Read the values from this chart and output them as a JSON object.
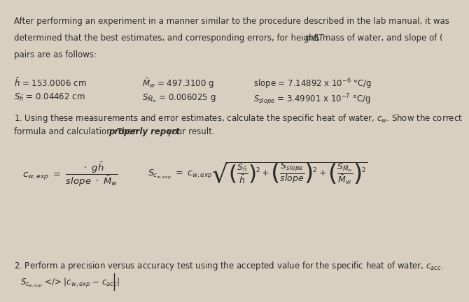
{
  "bg_color": "#d9cfc0",
  "text_color": "#2a2a2a",
  "fs": 8.5,
  "line1": "After performing an experiment in a manner similar to the procedure described in the lab manual, it was",
  "line2a": "determined that the best estimates, and corresponding errors, for height, mass of water, and slope of (",
  "line2b": "mAT",
  "line2c": ")",
  "line3": "pairs are as follows:",
  "h_label": "$\\bar{h}$ = 153.0006 cm",
  "Sh_label": "$S_{\\bar{h}}$ = 0.04462 cm",
  "Mw_label": "$\\bar{M}_w$ = 497.3100 g",
  "SMw_label": "$S_{\\bar{M}_w}$ = 0.006025 g",
  "slope_label": "slope = 7.14892 x 10$^{-6}$ °C/g",
  "Sslope_label": "$S_{slope}$ = 3.49901 x 10$^{-7}$ °C/g",
  "q1_line1": "1. Using these measurements and error estimates, calculate the specific heat of water, $c_w$. Show the correct",
  "q1_line2a": "formula and calculation. Then ",
  "q1_line2b": "properly report",
  "q1_line2c": " your result.",
  "lhs_formula": "$c_{w,exp}\\ =\\ \\dfrac{\\cdot\\ g\\bar{h}}{slope\\ \\cdot\\ \\bar{M}_w}$",
  "rhs_formula": "$S_{c_{w,exp}}\\ =\\ c_{w,exp}\\sqrt{\\left(\\dfrac{S_{\\bar{h}}}{\\bar{h}}\\right)^{\\!2}\\!+\\!\\left(\\dfrac{S_{slope}}{slope}\\right)^{\\!2}\\!+\\!\\left(\\dfrac{S_{\\bar{M}_w}}{\\bar{M}_w}\\right)^{\\!2}}$",
  "q2_line": "2. Perform a precision versus accuracy test using the accepted value for the specific heat of water, $c_{acc}$.",
  "q2_formula": "$S_{c_{w,exp}}$ </> |$c_{w,exp}$ − $c_{acc}$|"
}
